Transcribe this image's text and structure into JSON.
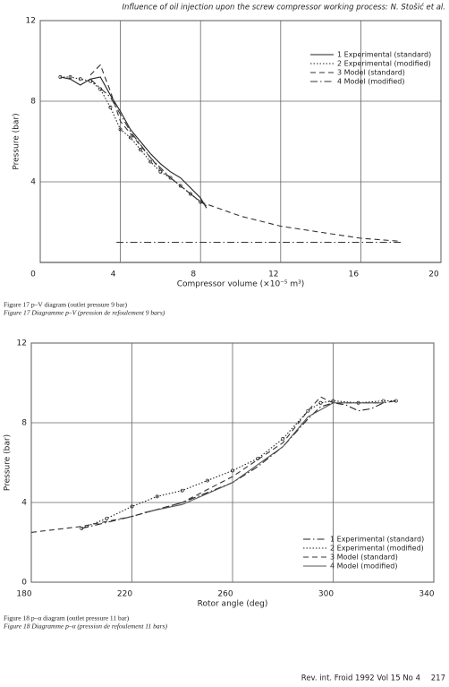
{
  "header": {
    "title": "Influence of oil injection upon the screw compressor working process: N. Stošić et al."
  },
  "chart_data": [
    {
      "type": "line",
      "xlabel": "Compressor volume (×10⁻⁵ m³)",
      "ylabel": "Pressure (bar)",
      "xlim": [
        0,
        20
      ],
      "xticks": [
        0,
        4,
        8,
        12,
        16,
        20
      ],
      "ylim": [
        0,
        12
      ],
      "yticks": [
        4,
        8,
        12
      ],
      "grid": true,
      "legend": "upper right",
      "series": [
        {
          "name": "1 Experimental (standard)",
          "color": "#222222",
          "style": "solid",
          "x": [
            1,
            1.5,
            2,
            2.5,
            3,
            3.5,
            4,
            4.5,
            5,
            5.5,
            6,
            6.5,
            7,
            7.5,
            8,
            8.3
          ],
          "values": [
            9.2,
            9.1,
            8.8,
            9.1,
            9.2,
            8.3,
            7.5,
            6.6,
            6.0,
            5.4,
            4.9,
            4.5,
            4.2,
            3.7,
            3.2,
            2.7
          ]
        },
        {
          "name": "2 Experimental (modified)",
          "color": "#222222",
          "style": "dotted",
          "marker": "circle",
          "x": [
            1,
            1.5,
            2,
            2.5,
            3,
            3.5,
            4,
            4.5,
            5,
            5.5,
            6,
            6.5,
            7,
            7.5,
            8
          ],
          "values": [
            9.2,
            9.2,
            9.1,
            9.0,
            8.6,
            7.7,
            6.6,
            6.2,
            5.6,
            5.0,
            4.5,
            4.2,
            3.8,
            3.4,
            3.0
          ]
        },
        {
          "name": "3 Model (standard)",
          "color": "#333333",
          "style": "dashed",
          "x": [
            2.5,
            3,
            3.5,
            4,
            5,
            6,
            7,
            8,
            10,
            12,
            14,
            16,
            18
          ],
          "values": [
            9.3,
            9.8,
            8.5,
            7.0,
            5.8,
            4.6,
            3.8,
            3.0,
            2.3,
            1.8,
            1.5,
            1.2,
            1.05
          ]
        },
        {
          "name": "4 Model (modified)",
          "color": "#333333",
          "style": "dashdot",
          "x": [
            2.5,
            3.5,
            4.5,
            5.5,
            6.5,
            7.5,
            8.3,
            8.4,
            3.8,
            18
          ],
          "values": [
            9.1,
            8.2,
            6.5,
            5.2,
            4.2,
            3.4,
            2.8,
            null,
            1.0,
            1.0
          ]
        }
      ]
    },
    {
      "type": "line",
      "xlabel": "Rotor angle (deg)",
      "ylabel": "Pressure (bar)",
      "xlim": [
        180,
        340
      ],
      "xticks": [
        180,
        220,
        260,
        300,
        340
      ],
      "ylim": [
        0,
        12
      ],
      "yticks": [
        0,
        4,
        8,
        12
      ],
      "grid": true,
      "legend": "lower right",
      "series": [
        {
          "name": "1 Experimental (standard)",
          "color": "#222222",
          "style": "dashdot",
          "x": [
            200,
            220,
            240,
            260,
            270,
            280,
            290,
            295,
            300,
            305,
            310,
            315,
            320,
            325
          ],
          "values": [
            2.7,
            3.3,
            4.0,
            5.0,
            5.8,
            6.8,
            8.2,
            8.8,
            9.0,
            8.9,
            8.6,
            8.7,
            9.0,
            9.1
          ]
        },
        {
          "name": "2 Experimental (modified)",
          "color": "#222222",
          "style": "dotted",
          "marker": "circle",
          "x": [
            200,
            210,
            220,
            230,
            240,
            250,
            260,
            270,
            280,
            290,
            295,
            300,
            310,
            320,
            325
          ],
          "values": [
            2.7,
            3.2,
            3.8,
            4.3,
            4.6,
            5.1,
            5.6,
            6.2,
            7.2,
            8.6,
            9.0,
            9.1,
            9.0,
            9.1,
            9.1
          ]
        },
        {
          "name": "3 Model (standard)",
          "color": "#333333",
          "style": "dashed",
          "x": [
            180,
            200,
            220,
            240,
            260,
            280,
            290,
            295,
            300,
            320
          ],
          "values": [
            2.5,
            2.8,
            3.3,
            4.0,
            5.3,
            7.0,
            8.6,
            9.3,
            9.0,
            9.0
          ]
        },
        {
          "name": "4 Model (modified)",
          "color": "#555555",
          "style": "solid",
          "x": [
            225,
            240,
            260,
            280,
            290,
            300,
            320
          ],
          "values": [
            3.5,
            3.9,
            5.0,
            6.8,
            8.3,
            9.0,
            9.0
          ]
        }
      ]
    }
  ],
  "captions": [
    {
      "en": "Figure 17   p–V diagram (outlet pressure 9 bar)",
      "fr": "Figure 17   Diagramme p–V (pression de refoulement 9 bars)"
    },
    {
      "en": "Figure 18   p–α diagram (outlet pressure 11 bar)",
      "fr": "Figure 18   Diagramme p–α (pression de refoulement 11 bars)"
    }
  ],
  "footer": {
    "journal": "Rev. int. Froid 1992 Vol 15 No 4",
    "page": "217"
  }
}
